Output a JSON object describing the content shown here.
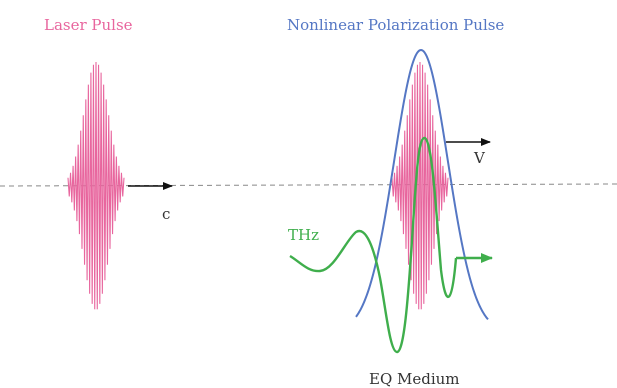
{
  "labels": {
    "laser_pulse": "Laser Pulse",
    "nonlinear_pulse": "Nonlinear Polarization Pulse",
    "c": "c",
    "v": "V",
    "thz": "THz",
    "medium": "EQ Medium"
  },
  "colors": {
    "laser": "#e8669e",
    "envelope": "#5577c4",
    "thz": "#3fae4c",
    "axis": "#888888",
    "arrow": "#111111",
    "text": "#333333"
  }
}
